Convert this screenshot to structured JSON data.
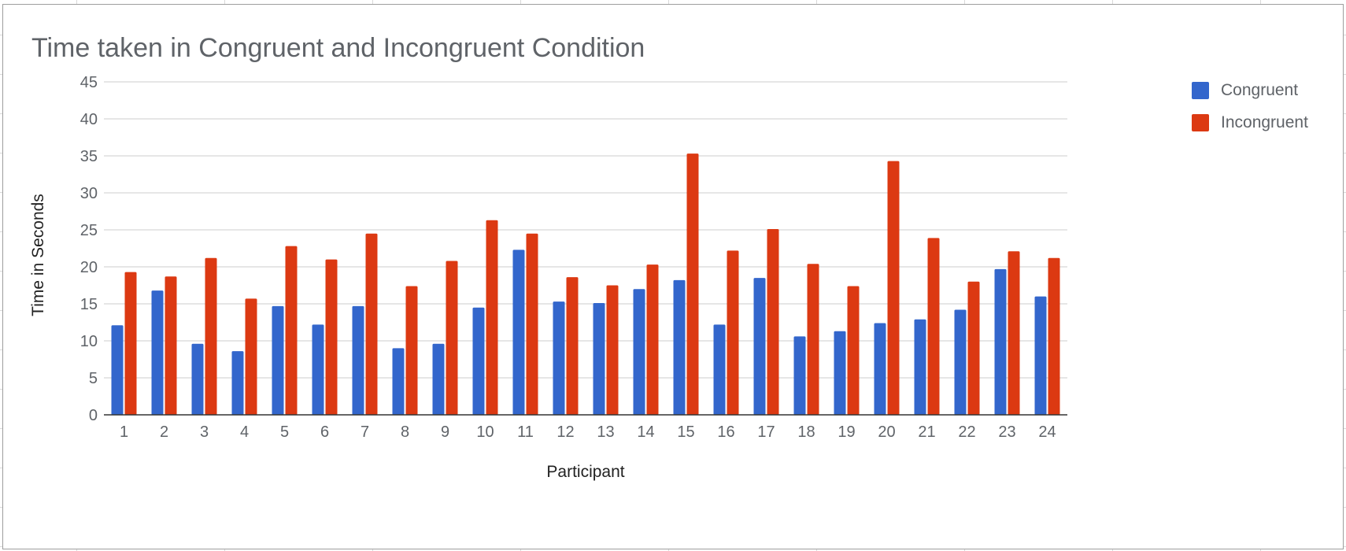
{
  "chart_data": {
    "type": "bar",
    "title": "Time taken in Congruent and Incongruent Condition",
    "xlabel": "Participant",
    "ylabel": "Time in Seconds",
    "ylim": [
      0,
      45
    ],
    "yticks": [
      "0",
      "5",
      "10",
      "15",
      "20",
      "25",
      "30",
      "35",
      "40",
      "45"
    ],
    "grid": true,
    "legend_position": "right",
    "categories": [
      "1",
      "2",
      "3",
      "4",
      "5",
      "6",
      "7",
      "8",
      "9",
      "10",
      "11",
      "12",
      "13",
      "14",
      "15",
      "16",
      "17",
      "18",
      "19",
      "20",
      "21",
      "22",
      "23",
      "24"
    ],
    "series": [
      {
        "name": "Congruent",
        "color": "#3366cc",
        "values": [
          12.1,
          16.8,
          9.6,
          8.6,
          14.7,
          12.2,
          14.7,
          9.0,
          9.6,
          14.5,
          22.3,
          15.3,
          15.1,
          17.0,
          18.2,
          12.2,
          18.5,
          10.6,
          11.3,
          12.4,
          12.9,
          14.2,
          19.7,
          16.0
        ]
      },
      {
        "name": "Incongruent",
        "color": "#dc3912",
        "values": [
          19.3,
          18.7,
          21.2,
          15.7,
          22.8,
          21.0,
          24.5,
          17.4,
          20.8,
          26.3,
          24.5,
          18.6,
          17.5,
          20.3,
          35.3,
          22.2,
          25.1,
          20.4,
          17.4,
          34.3,
          23.9,
          18.0,
          22.1,
          21.2
        ]
      }
    ]
  }
}
